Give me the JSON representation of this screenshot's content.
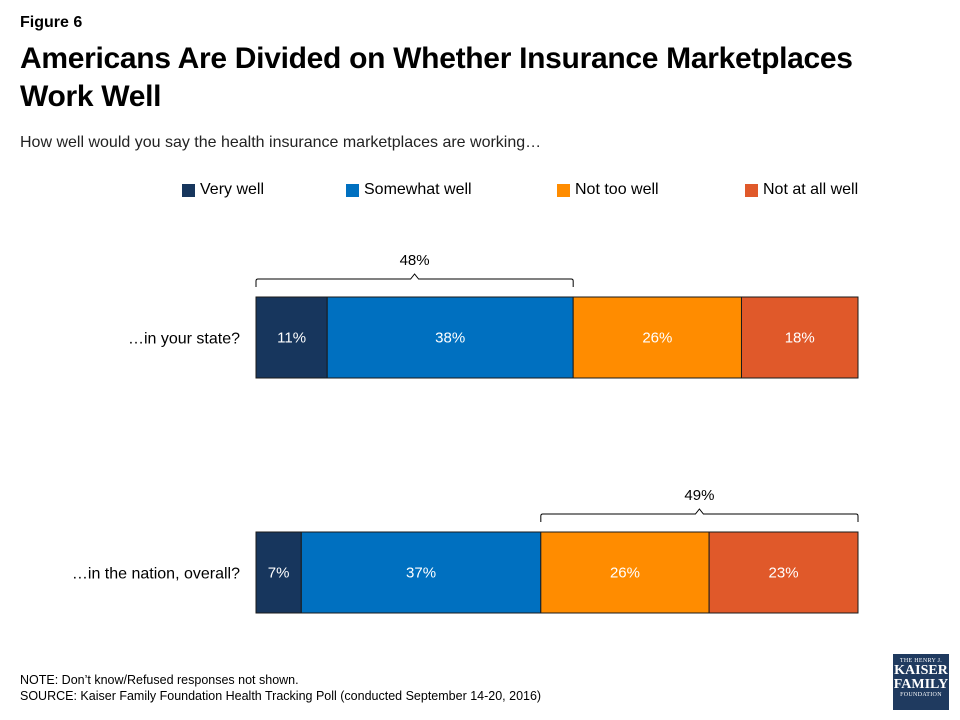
{
  "figure_label": "Figure 6",
  "title": "Americans Are Divided on Whether Insurance Marketplaces Work Well",
  "subtitle": "How well would you say the health insurance marketplaces are working…",
  "legend": [
    {
      "label": "Very well",
      "color": "#17365d"
    },
    {
      "label": "Somewhat well",
      "color": "#0070c0"
    },
    {
      "label": "Not too well",
      "color": "#ff8c00"
    },
    {
      "label": "Not at all well",
      "color": "#e0592a"
    }
  ],
  "chart_data": {
    "type": "bar",
    "orientation": "horizontal",
    "stacked": true,
    "categories": [
      "…in your state?",
      "…in the nation, overall?"
    ],
    "series": [
      {
        "name": "Very well",
        "values": [
          11,
          7
        ]
      },
      {
        "name": "Somewhat well",
        "values": [
          38,
          37
        ]
      },
      {
        "name": "Not too well",
        "values": [
          26,
          26
        ]
      },
      {
        "name": "Not at all well",
        "values": [
          18,
          23
        ]
      }
    ],
    "value_labels": [
      [
        "11%",
        "38%",
        "26%",
        "18%"
      ],
      [
        "7%",
        "37%",
        "26%",
        "23%"
      ]
    ],
    "brackets": [
      {
        "category_index": 0,
        "series_from": 0,
        "series_to": 1,
        "label": "48%",
        "position": "above"
      },
      {
        "category_index": 1,
        "series_from": 2,
        "series_to": 3,
        "label": "49%",
        "position": "above"
      }
    ],
    "legend_position": "top",
    "grid": false
  },
  "note": "NOTE: Don’t know/Refused responses not shown.",
  "source": "SOURCE: Kaiser Family Foundation Health Tracking Poll (conducted September 14-20, 2016)",
  "logo": {
    "line1": "THE HENRY J.",
    "line2": "KAISER",
    "line3": "FAMILY",
    "line4": "FOUNDATION"
  }
}
